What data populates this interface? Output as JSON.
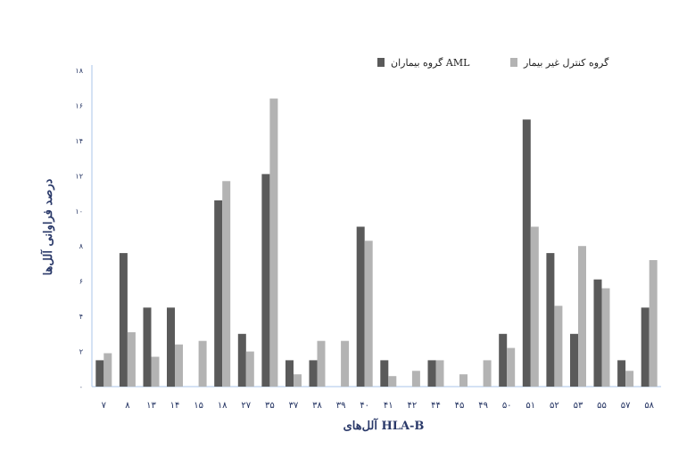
{
  "chart_data": {
    "type": "bar",
    "xlabel": "آلل‌های HLA-B",
    "ylabel": "درصد فراوانی آلل‌ها",
    "ylim": [
      0,
      18
    ],
    "yticks": [
      "۰",
      "۲",
      "۴",
      "۶",
      "۸",
      "۱۰",
      "۱۲",
      "۱۴",
      "۱۶",
      "۱۸"
    ],
    "categories": [
      "۷",
      "۸",
      "۱۳",
      "۱۴",
      "۱۵",
      "۱۸",
      "۲۷",
      "۳۵",
      "۳۷",
      "۳۸",
      "۳۹",
      "۴۰",
      "۴۱",
      "۴۲",
      "۴۴",
      "۴۵",
      "۴۹",
      "۵۰",
      "۵۱",
      "۵۲",
      "۵۳",
      "۵۵",
      "۵۷",
      "۵۸"
    ],
    "series": [
      {
        "name": "گروه بیماران AML",
        "color": "#5a5a5a",
        "values": [
          1.5,
          7.6,
          4.5,
          4.5,
          0,
          10.6,
          3.0,
          12.1,
          1.5,
          1.5,
          0,
          9.1,
          1.5,
          0,
          1.5,
          0,
          0,
          3.0,
          15.2,
          7.6,
          3.0,
          6.1,
          1.5,
          4.5
        ]
      },
      {
        "name": "گروه کنترل غیر بیمار",
        "color": "#b3b3b3",
        "values": [
          1.9,
          3.1,
          1.7,
          2.4,
          2.6,
          11.7,
          2.0,
          16.4,
          0.7,
          2.6,
          2.6,
          8.3,
          0.6,
          0.9,
          1.5,
          0.7,
          1.5,
          2.2,
          9.1,
          4.6,
          8.0,
          5.6,
          0.9,
          7.2
        ]
      }
    ],
    "legend": "top-right",
    "grid": false
  }
}
